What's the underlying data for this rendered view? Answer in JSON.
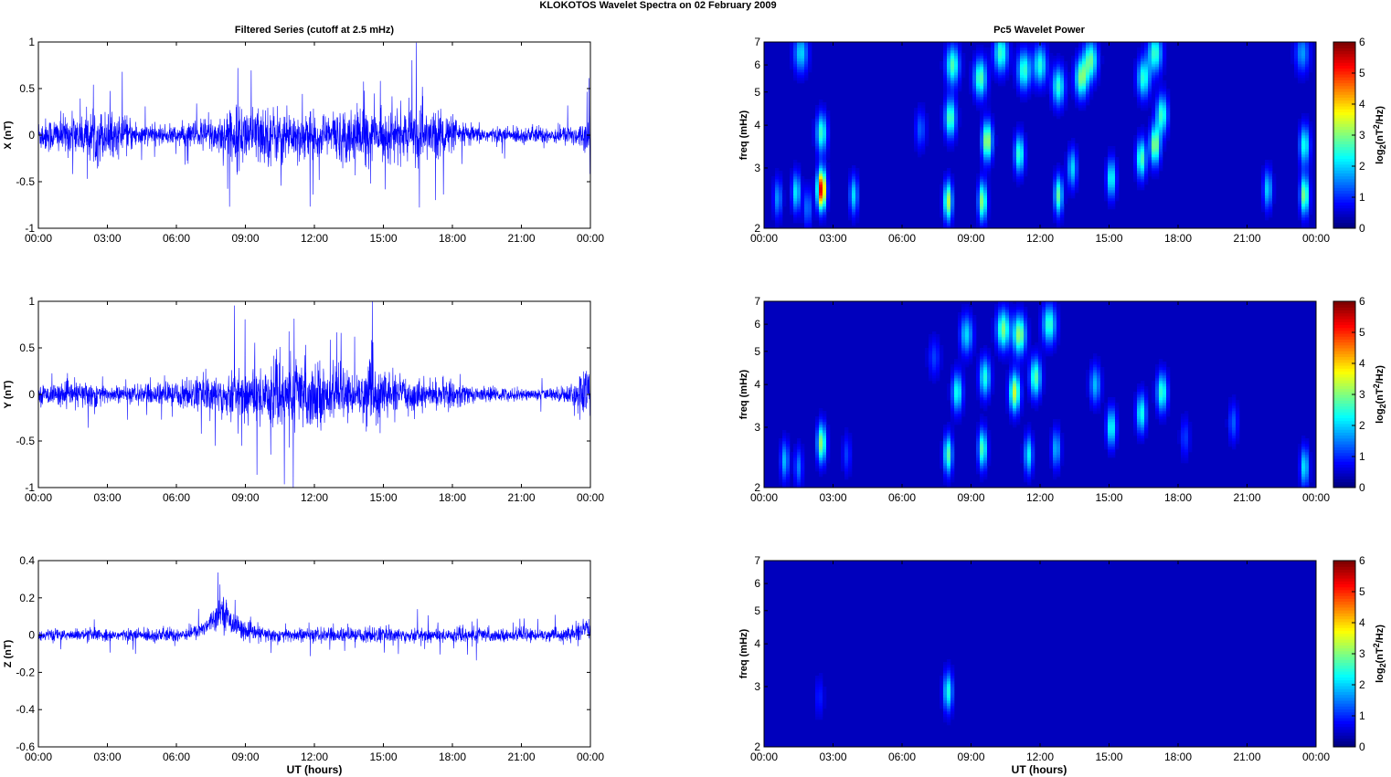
{
  "figure": {
    "title": "KLOKOTOS Wavelet Spectra on 02 February  2009",
    "left_column_title": "Filtered Series (cutoff at 2.5 mHz)",
    "right_column_title": "Pc5 Wavelet Power",
    "xlabel": "UT (hours)"
  },
  "colors": {
    "trace": "#0000ff",
    "axes": "#000000",
    "background": "#ffffff"
  },
  "chart_data": [
    {
      "type": "line",
      "ylabel": "X (nT)",
      "xticks": [
        "00:00",
        "03:00",
        "06:00",
        "09:00",
        "12:00",
        "15:00",
        "18:00",
        "21:00",
        "00:00"
      ],
      "xlim": [
        0,
        24
      ],
      "ylim": [
        -1,
        1
      ],
      "yticks": [
        -1,
        -0.5,
        0,
        0.5,
        1
      ],
      "series": [
        {
          "x": [
            0,
            1,
            2,
            2.5,
            3,
            4,
            5,
            6,
            7,
            8,
            9,
            10,
            11,
            12,
            13,
            14,
            15,
            16,
            16.7,
            17,
            17.5,
            18,
            19,
            20,
            21,
            22,
            23,
            23.9,
            24
          ],
          "envelope": [
            0.22,
            0.26,
            0.28,
            0.4,
            0.3,
            0.22,
            0.12,
            0.14,
            0.22,
            0.3,
            0.42,
            0.4,
            0.36,
            0.3,
            0.34,
            0.4,
            0.32,
            0.34,
            0.45,
            0.28,
            0.4,
            0.22,
            0.12,
            0.1,
            0.12,
            0.12,
            0.13,
            0.2,
            0.75
          ]
        }
      ]
    },
    {
      "type": "line",
      "ylabel": "Y (nT)",
      "xticks": [
        "00:00",
        "03:00",
        "06:00",
        "09:00",
        "12:00",
        "15:00",
        "18:00",
        "21:00",
        "00:00"
      ],
      "xlim": [
        0,
        24
      ],
      "ylim": [
        -1,
        1
      ],
      "yticks": [
        -1,
        -0.5,
        0,
        0.5,
        1
      ],
      "series": [
        {
          "x": [
            0,
            1,
            2,
            2.5,
            3,
            4,
            5,
            6,
            7,
            8,
            9,
            10,
            11,
            12,
            13,
            14,
            14.5,
            15,
            16,
            17,
            18,
            19,
            20,
            21,
            22,
            23,
            24
          ],
          "envelope": [
            0.12,
            0.15,
            0.18,
            0.2,
            0.12,
            0.12,
            0.15,
            0.18,
            0.25,
            0.3,
            0.38,
            0.45,
            0.55,
            0.45,
            0.3,
            0.28,
            0.6,
            0.3,
            0.22,
            0.18,
            0.2,
            0.1,
            0.1,
            0.08,
            0.08,
            0.12,
            0.4
          ]
        }
      ]
    },
    {
      "type": "line",
      "ylabel": "Z (nT)",
      "xticks": [
        "00:00",
        "03:00",
        "06:00",
        "09:00",
        "12:00",
        "15:00",
        "18:00",
        "21:00",
        "00:00"
      ],
      "xlim": [
        0,
        24
      ],
      "ylim": [
        -0.6,
        0.4
      ],
      "yticks": [
        -0.6,
        -0.4,
        -0.2,
        0,
        0.2,
        0.4
      ],
      "series": [
        {
          "x": [
            0,
            2,
            4,
            5,
            6,
            7,
            7.7,
            8,
            8.3,
            9,
            10,
            12,
            14,
            14.5,
            16,
            18,
            19,
            20,
            22,
            23,
            24
          ],
          "envelope": [
            0.04,
            0.04,
            0.04,
            0.05,
            0.05,
            0.05,
            0.08,
            0.12,
            0.09,
            0.06,
            0.05,
            0.05,
            0.05,
            0.06,
            0.05,
            0.05,
            0.06,
            0.04,
            0.04,
            0.05,
            0.08
          ],
          "offset": [
            0,
            0,
            0,
            0,
            0,
            0.02,
            0.1,
            0.14,
            0.08,
            0.02,
            0,
            0,
            0,
            0,
            0,
            0,
            0,
            0,
            0,
            0,
            0.03
          ]
        }
      ]
    },
    {
      "type": "heatmap",
      "ylabel": "freq (mHz)",
      "xlim": [
        0,
        24
      ],
      "ylim": [
        2,
        7
      ],
      "yscale": "log",
      "yticks": [
        2,
        3,
        4,
        5,
        6,
        7
      ],
      "xticks": [
        "00:00",
        "03:00",
        "06:00",
        "09:00",
        "12:00",
        "15:00",
        "18:00",
        "21:00",
        "00:00"
      ],
      "colorbar": {
        "label": "log2(nT²/Hz)",
        "ticks": [
          0,
          1,
          2,
          3,
          4,
          5,
          6
        ],
        "range": [
          0,
          6
        ]
      },
      "blobs": [
        {
          "t": 0.6,
          "f": 2.45,
          "v": 1.4
        },
        {
          "t": 1.4,
          "f": 2.55,
          "v": 2.0
        },
        {
          "t": 1.9,
          "f": 2.3,
          "v": 1.2
        },
        {
          "t": 2.5,
          "f": 2.6,
          "v": 5.6
        },
        {
          "t": 2.5,
          "f": 3.8,
          "v": 2.4
        },
        {
          "t": 1.6,
          "f": 6.5,
          "v": 1.8
        },
        {
          "t": 3.9,
          "f": 2.5,
          "v": 1.8
        },
        {
          "t": 6.8,
          "f": 3.9,
          "v": 1.0
        },
        {
          "t": 8.0,
          "f": 2.4,
          "v": 3.2
        },
        {
          "t": 8.1,
          "f": 4.2,
          "v": 2.6
        },
        {
          "t": 8.2,
          "f": 6.0,
          "v": 2.5
        },
        {
          "t": 9.5,
          "f": 2.4,
          "v": 3.0
        },
        {
          "t": 9.7,
          "f": 3.6,
          "v": 3.2
        },
        {
          "t": 9.4,
          "f": 5.5,
          "v": 2.6
        },
        {
          "t": 10.3,
          "f": 6.5,
          "v": 2.4
        },
        {
          "t": 11.1,
          "f": 3.3,
          "v": 2.4
        },
        {
          "t": 11.3,
          "f": 5.8,
          "v": 2.4
        },
        {
          "t": 12.0,
          "f": 6.0,
          "v": 2.2
        },
        {
          "t": 12.8,
          "f": 2.5,
          "v": 2.6
        },
        {
          "t": 12.8,
          "f": 5.2,
          "v": 2.3
        },
        {
          "t": 13.4,
          "f": 3.0,
          "v": 1.8
        },
        {
          "t": 13.8,
          "f": 5.5,
          "v": 2.8
        },
        {
          "t": 14.2,
          "f": 6.2,
          "v": 2.6
        },
        {
          "t": 15.1,
          "f": 2.8,
          "v": 2.2
        },
        {
          "t": 16.4,
          "f": 3.2,
          "v": 2.6
        },
        {
          "t": 16.5,
          "f": 5.5,
          "v": 2.3
        },
        {
          "t": 17.0,
          "f": 3.5,
          "v": 3.0
        },
        {
          "t": 17.3,
          "f": 4.3,
          "v": 2.4
        },
        {
          "t": 17.0,
          "f": 6.5,
          "v": 2.4
        },
        {
          "t": 21.9,
          "f": 2.6,
          "v": 1.8
        },
        {
          "t": 23.5,
          "f": 2.5,
          "v": 3.0
        },
        {
          "t": 23.5,
          "f": 3.5,
          "v": 2.2
        },
        {
          "t": 23.4,
          "f": 6.5,
          "v": 1.4
        }
      ]
    },
    {
      "type": "heatmap",
      "ylabel": "freq (mHz)",
      "xlim": [
        0,
        24
      ],
      "ylim": [
        2,
        7
      ],
      "yscale": "log",
      "yticks": [
        2,
        3,
        4,
        5,
        6,
        7
      ],
      "xticks": [
        "00:00",
        "03:00",
        "06:00",
        "09:00",
        "12:00",
        "15:00",
        "18:00",
        "21:00",
        "00:00"
      ],
      "colorbar": {
        "label": "log2(nT²/Hz)",
        "ticks": [
          0,
          1,
          2,
          3,
          4,
          5,
          6
        ],
        "range": [
          0,
          6
        ]
      },
      "blobs": [
        {
          "t": 0.9,
          "f": 2.4,
          "v": 1.6
        },
        {
          "t": 1.5,
          "f": 2.3,
          "v": 1.2
        },
        {
          "t": 2.5,
          "f": 2.7,
          "v": 3.0
        },
        {
          "t": 3.6,
          "f": 2.5,
          "v": 0.8
        },
        {
          "t": 7.4,
          "f": 4.8,
          "v": 0.8
        },
        {
          "t": 8.0,
          "f": 2.5,
          "v": 2.6
        },
        {
          "t": 8.4,
          "f": 3.8,
          "v": 2.2
        },
        {
          "t": 8.8,
          "f": 5.6,
          "v": 1.8
        },
        {
          "t": 9.5,
          "f": 2.6,
          "v": 2.6
        },
        {
          "t": 9.6,
          "f": 4.2,
          "v": 2.2
        },
        {
          "t": 10.4,
          "f": 5.8,
          "v": 2.8
        },
        {
          "t": 10.9,
          "f": 3.8,
          "v": 3.3
        },
        {
          "t": 11.1,
          "f": 5.6,
          "v": 3.0
        },
        {
          "t": 11.5,
          "f": 2.5,
          "v": 2.0
        },
        {
          "t": 11.8,
          "f": 4.2,
          "v": 2.6
        },
        {
          "t": 12.4,
          "f": 6.0,
          "v": 2.4
        },
        {
          "t": 12.7,
          "f": 2.6,
          "v": 1.6
        },
        {
          "t": 14.4,
          "f": 4.0,
          "v": 1.6
        },
        {
          "t": 15.1,
          "f": 3.0,
          "v": 2.2
        },
        {
          "t": 16.4,
          "f": 3.3,
          "v": 2.2
        },
        {
          "t": 17.3,
          "f": 3.8,
          "v": 2.4
        },
        {
          "t": 18.3,
          "f": 2.8,
          "v": 0.8
        },
        {
          "t": 20.4,
          "f": 3.1,
          "v": 1.0
        },
        {
          "t": 23.5,
          "f": 2.3,
          "v": 2.0
        }
      ]
    },
    {
      "type": "heatmap",
      "ylabel": "freq (mHz)",
      "xlim": [
        0,
        24
      ],
      "ylim": [
        2,
        7
      ],
      "yscale": "log",
      "yticks": [
        2,
        3,
        4,
        5,
        6,
        7
      ],
      "xticks": [
        "00:00",
        "03:00",
        "06:00",
        "09:00",
        "12:00",
        "15:00",
        "18:00",
        "21:00",
        "00:00"
      ],
      "colorbar": {
        "label": "log2(nT²/Hz)",
        "ticks": [
          0,
          1,
          2,
          3,
          4,
          5,
          6
        ],
        "range": [
          0,
          6
        ]
      },
      "blobs": [
        {
          "t": 8.0,
          "f": 2.9,
          "v": 2.2
        },
        {
          "t": 2.4,
          "f": 2.8,
          "v": 0.6
        }
      ]
    }
  ]
}
